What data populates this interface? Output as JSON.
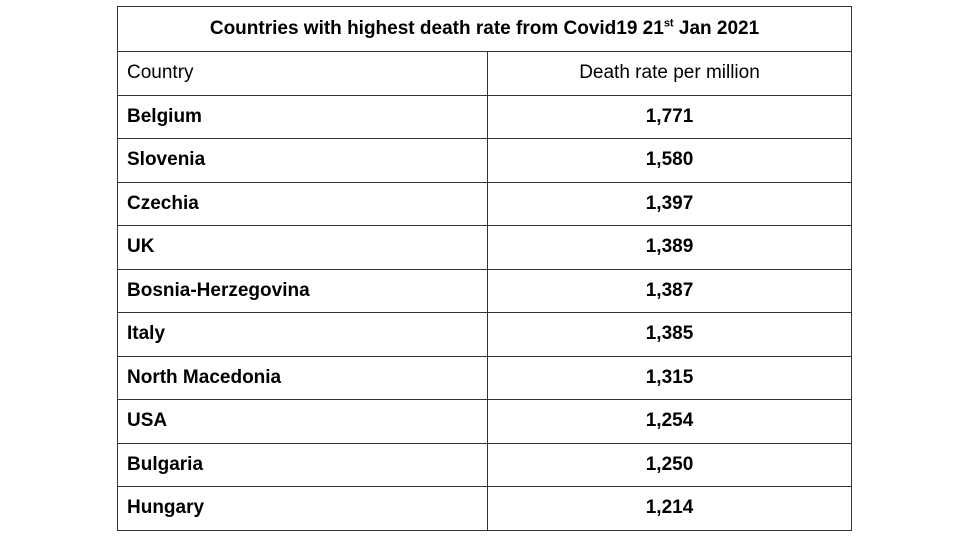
{
  "table": {
    "title_main": "Countries with highest death rate from Covid19 21",
    "title_sup": "st",
    "title_tail": " Jan 2021",
    "headers": {
      "country": "Country",
      "rate": "Death rate per million"
    },
    "rows": [
      {
        "country": "Belgium",
        "rate": "1,771"
      },
      {
        "country": "Slovenia",
        "rate": "1,580"
      },
      {
        "country": "Czechia",
        "rate": "1,397"
      },
      {
        "country": "UK",
        "rate": "1,389"
      },
      {
        "country": "Bosnia-Herzegovina",
        "rate": "1,387"
      },
      {
        "country": "Italy",
        "rate": "1,385"
      },
      {
        "country": "North Macedonia",
        "rate": "1,315"
      },
      {
        "country": "USA",
        "rate": "1,254"
      },
      {
        "country": "Bulgaria",
        "rate": "1,250"
      },
      {
        "country": "Hungary",
        "rate": "1,214"
      }
    ]
  }
}
